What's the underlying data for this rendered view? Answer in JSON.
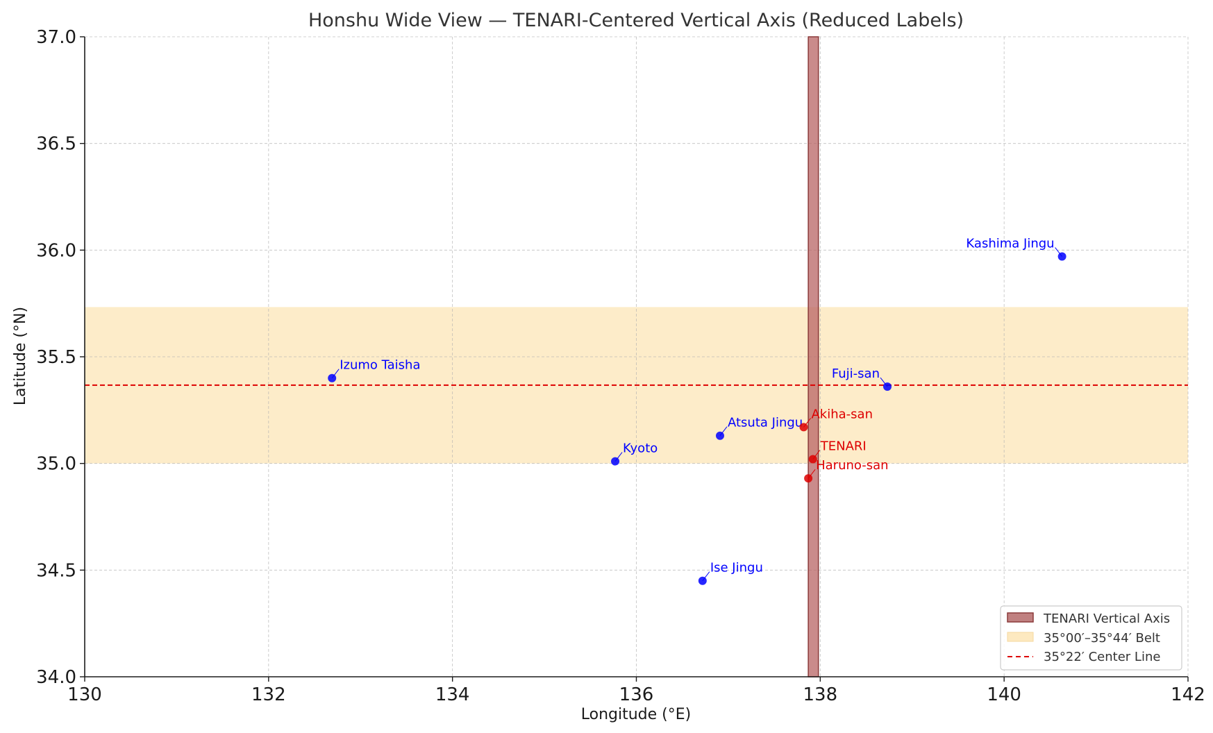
{
  "chart_data": {
    "type": "scatter",
    "title": "Honshu Wide View — TENARI-Centered Vertical Axis (Reduced Labels)",
    "xlabel": "Longitude (°E)",
    "ylabel": "Latitude (°N)",
    "xlim": [
      130,
      142
    ],
    "ylim": [
      34.0,
      37.0
    ],
    "xticks": [
      130,
      132,
      134,
      136,
      138,
      140,
      142
    ],
    "yticks": [
      34.0,
      34.5,
      35.0,
      35.5,
      36.0,
      36.5,
      37.0
    ],
    "grid": true,
    "legend_placement": "bottom-right",
    "colors": {
      "site_point": "#0000ff",
      "tenari_point": "#dd0000",
      "vertical_axis": "#b06060",
      "belt": "#fde9c0",
      "center_line": "#dd0000"
    },
    "vertical_axis_band": {
      "x_range": [
        137.87,
        137.98
      ],
      "label": "TENARI Vertical Axis"
    },
    "belt": {
      "y_range": [
        35.0,
        35.733
      ],
      "label": "35°00′–35°44′ Belt"
    },
    "center_line": {
      "y": 35.367,
      "label": "35°22′ Center Line"
    },
    "points": [
      {
        "name": "Izumo Taisha",
        "lon": 132.69,
        "lat": 35.4,
        "group": "site",
        "label_side": "right"
      },
      {
        "name": "Kyoto",
        "lon": 135.77,
        "lat": 35.01,
        "group": "site",
        "label_side": "right"
      },
      {
        "name": "Atsuta Jingu",
        "lon": 136.91,
        "lat": 35.13,
        "group": "site",
        "label_side": "right"
      },
      {
        "name": "Ise Jingu",
        "lon": 136.72,
        "lat": 34.45,
        "group": "site",
        "label_side": "right"
      },
      {
        "name": "Fuji-san",
        "lon": 138.73,
        "lat": 35.36,
        "group": "site",
        "label_side": "left"
      },
      {
        "name": "Kashima Jingu",
        "lon": 140.63,
        "lat": 35.97,
        "group": "site",
        "label_side": "left"
      },
      {
        "name": "Akiha-san",
        "lon": 137.82,
        "lat": 35.17,
        "group": "tenari",
        "label_side": "right"
      },
      {
        "name": "TENARI",
        "lon": 137.92,
        "lat": 35.02,
        "group": "tenari",
        "label_side": "right"
      },
      {
        "name": "Haruno-san",
        "lon": 137.87,
        "lat": 34.93,
        "group": "tenari",
        "label_side": "right"
      }
    ]
  }
}
